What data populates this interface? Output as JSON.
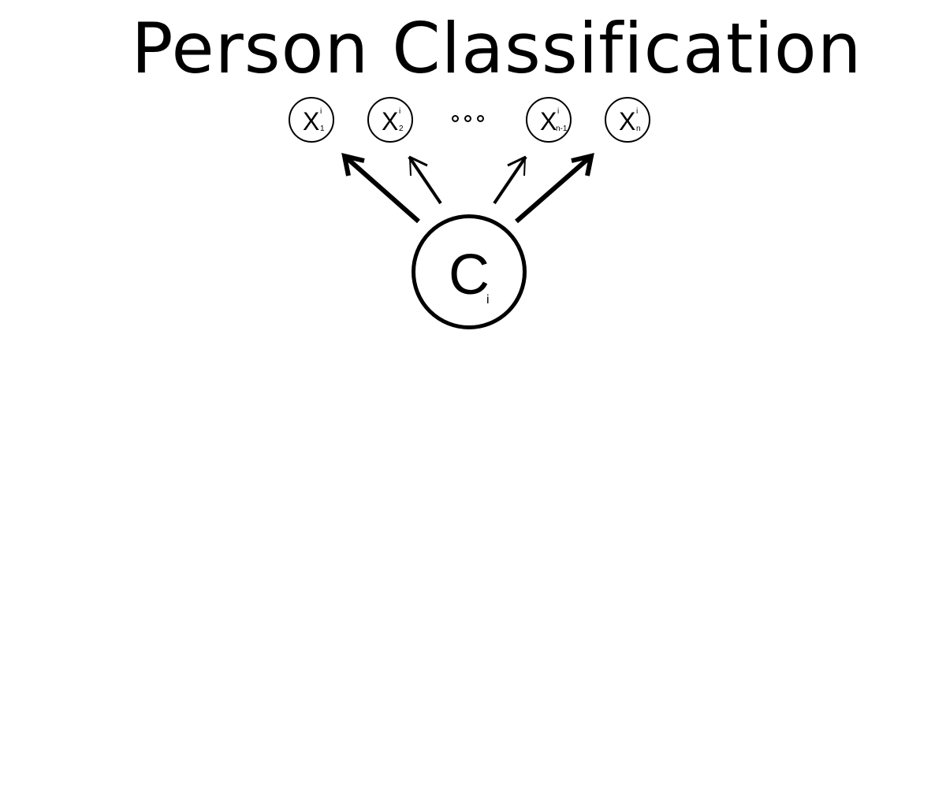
{
  "title": "Person Classification",
  "class_node": {
    "letter": "C",
    "subscript": "i"
  },
  "feature_nodes": [
    {
      "letter": "X",
      "superscript": "i",
      "subscript": "1"
    },
    {
      "letter": "X",
      "superscript": "i",
      "subscript": "2"
    },
    {
      "letter": "X",
      "superscript": "i",
      "subscript": "n-1"
    },
    {
      "letter": "X",
      "superscript": "i",
      "subscript": "n"
    }
  ]
}
